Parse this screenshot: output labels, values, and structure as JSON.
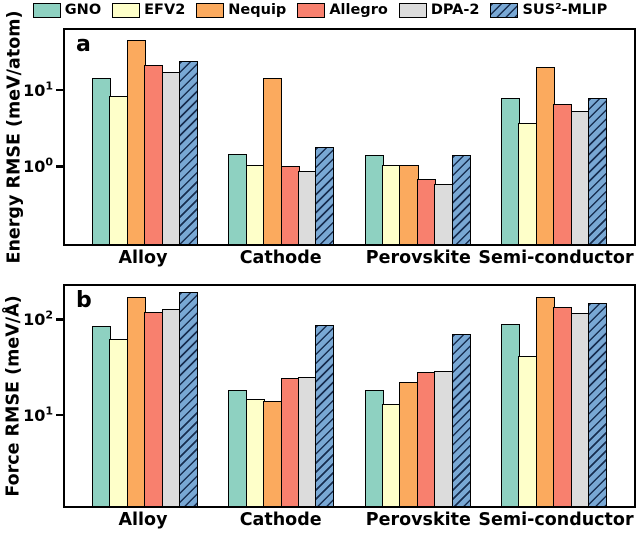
{
  "figure": {
    "background": "#ffffff"
  },
  "legend": {
    "items": [
      {
        "label": "GNO",
        "color": "#8ed1c1",
        "hatch": false
      },
      {
        "label": "EFV2",
        "color": "#feffc9",
        "hatch": false
      },
      {
        "label": "Nequip",
        "color": "#fbaa5e",
        "hatch": false
      },
      {
        "label": "Allegro",
        "color": "#f8806e",
        "hatch": false
      },
      {
        "label": "DPA-2",
        "color": "#dcdcdc",
        "hatch": false
      },
      {
        "label": "SUS²-MLIP",
        "color": "#79a8d4",
        "hatch": true,
        "hatch_color": "#14284b"
      }
    ]
  },
  "chart_data": [
    {
      "type": "bar",
      "panel": "a",
      "title": "",
      "ylabel": "Energy RMSE (meV/atom)",
      "xlabel": "",
      "yscale": "log",
      "ylim": [
        0.097,
        60
      ],
      "yticks": [
        1,
        10
      ],
      "grid": false,
      "legend_position": "top",
      "categories": [
        "Alloy",
        "Cathode",
        "Perovskite",
        "Semi-conductor"
      ],
      "series": [
        {
          "name": "GNO",
          "values": [
            14,
            1.45,
            1.4,
            7.7
          ]
        },
        {
          "name": "EFV2",
          "values": [
            8.3,
            1.05,
            1.05,
            3.7
          ]
        },
        {
          "name": "Nequip",
          "values": [
            44,
            14,
            1.05,
            20
          ]
        },
        {
          "name": "Allegro",
          "values": [
            21,
            1.0,
            0.68,
            6.6
          ]
        },
        {
          "name": "DPA-2",
          "values": [
            17,
            0.87,
            0.58,
            5.3
          ]
        },
        {
          "name": "SUS²-MLIP",
          "values": [
            23.5,
            1.8,
            1.4,
            7.8
          ]
        }
      ]
    },
    {
      "type": "bar",
      "panel": "b",
      "title": "",
      "ylabel": "Force RMSE (meV/Å)",
      "xlabel": "",
      "yscale": "log",
      "ylim": [
        1.1,
        224
      ],
      "yticks": [
        10,
        100
      ],
      "grid": false,
      "legend_position": "top",
      "categories": [
        "Alloy",
        "Cathode",
        "Perovskite",
        "Semi-conductor"
      ],
      "series": [
        {
          "name": "GNO",
          "values": [
            85,
            18,
            18,
            90
          ]
        },
        {
          "name": "EFV2",
          "values": [
            62,
            14.5,
            13,
            41
          ]
        },
        {
          "name": "Nequip",
          "values": [
            170,
            13.8,
            22,
            170
          ]
        },
        {
          "name": "Allegro",
          "values": [
            120,
            24,
            28,
            135
          ]
        },
        {
          "name": "DPA-2",
          "values": [
            127,
            25,
            29,
            118
          ]
        },
        {
          "name": "SUS²-MLIP",
          "values": [
            195,
            88,
            70,
            150
          ]
        }
      ]
    }
  ]
}
